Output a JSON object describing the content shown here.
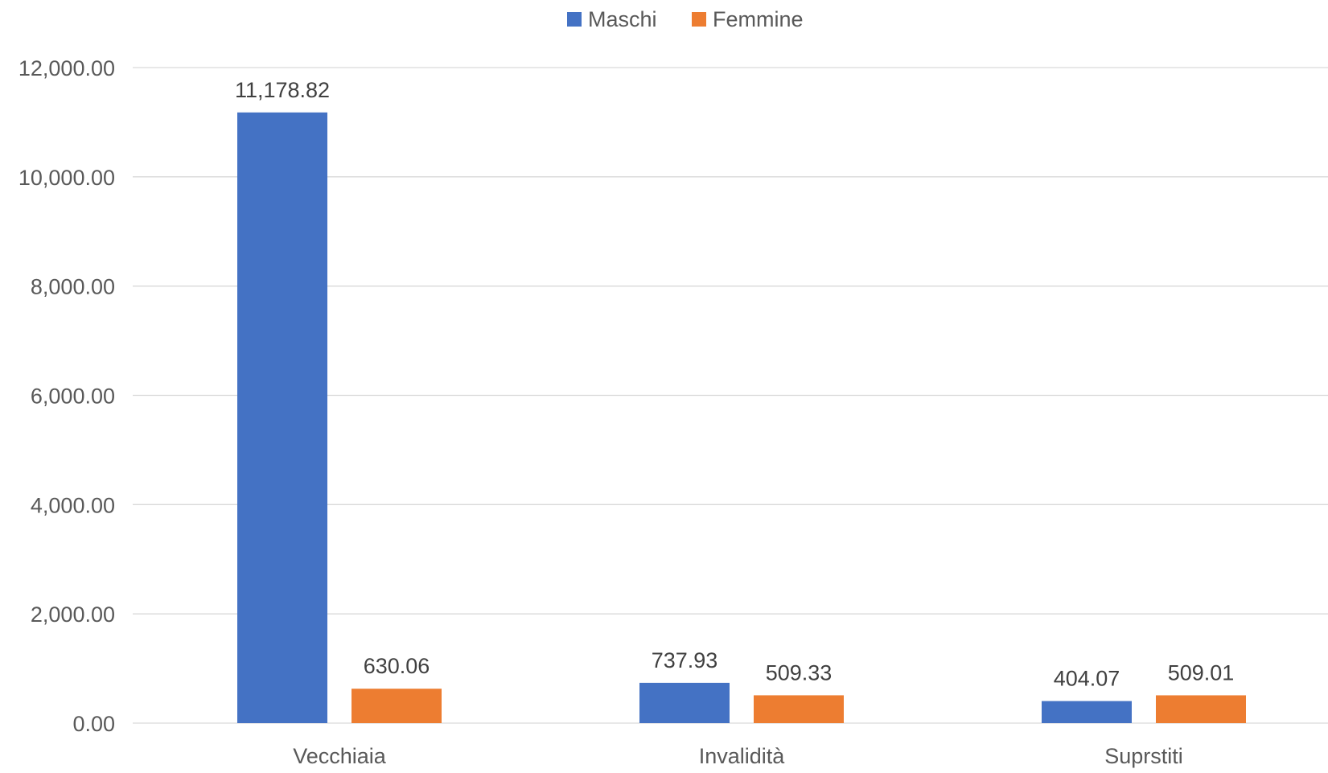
{
  "chart_data": {
    "type": "bar",
    "title": "",
    "xlabel": "",
    "ylabel": "",
    "categories": [
      "Vecchiaia",
      "Invalidità",
      "Suprstiti"
    ],
    "series": [
      {
        "name": "Maschi",
        "color": "#4472C4",
        "values": [
          11178.82,
          737.93,
          404.07
        ],
        "labels": [
          "11,178.82",
          "737.93",
          "404.07"
        ]
      },
      {
        "name": "Femmine",
        "color": "#ED7D31",
        "values": [
          630.06,
          509.33,
          509.01
        ],
        "labels": [
          "630.06",
          "509.33",
          "509.01"
        ]
      }
    ],
    "ylim": [
      0,
      12000
    ],
    "yticks": [
      0,
      2000,
      4000,
      6000,
      8000,
      10000,
      12000
    ],
    "ytick_labels": [
      "0.00",
      "2,000.00",
      "4,000.00",
      "6,000.00",
      "8,000.00",
      "10,000.00",
      "12,000.00"
    ],
    "grid": true,
    "legend_position": "top-center"
  }
}
